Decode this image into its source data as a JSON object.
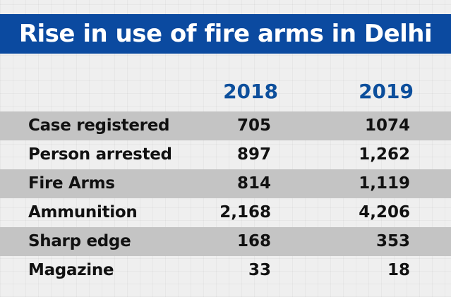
{
  "title": "Rise in use of fire arms in Delhi",
  "header": {
    "col_2018": "2018",
    "col_2019": "2019"
  },
  "rows": [
    {
      "label": "Case registered",
      "v2018": "705",
      "v2019": "1074"
    },
    {
      "label": "Person arrested",
      "v2018": "897",
      "v2019": "1,262"
    },
    {
      "label": "Fire Arms",
      "v2018": "814",
      "v2019": "1,119"
    },
    {
      "label": "Ammunition",
      "v2018": "2,168",
      "v2019": "4,206"
    },
    {
      "label": "Sharp edge",
      "v2018": "168",
      "v2019": "353"
    },
    {
      "label": "Magazine",
      "v2018": "33",
      "v2019": "18"
    }
  ],
  "colors": {
    "title_bg": "#0b4aa0",
    "year_text": "#0d4f9c",
    "shaded_row": "#c4c4c4"
  },
  "chart_data": {
    "type": "table",
    "title": "Rise in use of fire arms in Delhi",
    "columns": [
      "2018",
      "2019"
    ],
    "categories": [
      "Case registered",
      "Person arrested",
      "Fire Arms",
      "Ammunition",
      "Sharp edge",
      "Magazine"
    ],
    "series": [
      {
        "name": "2018",
        "values": [
          705,
          897,
          814,
          2168,
          168,
          33
        ]
      },
      {
        "name": "2019",
        "values": [
          1074,
          1262,
          1119,
          4206,
          353,
          18
        ]
      }
    ]
  }
}
